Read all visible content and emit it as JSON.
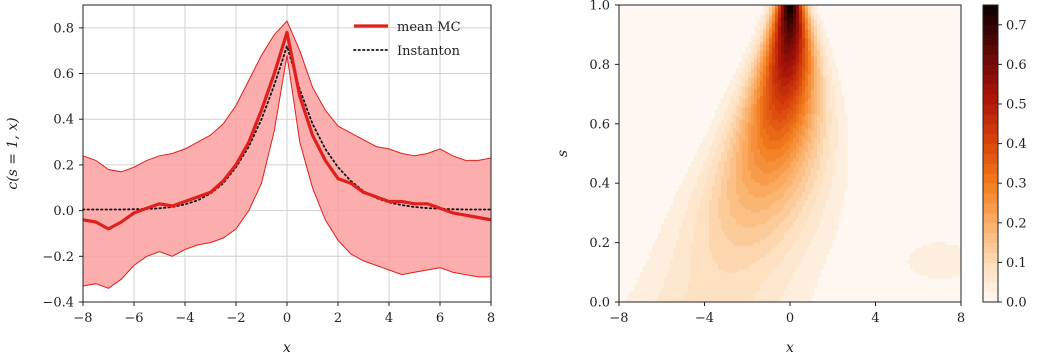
{
  "chart_data": [
    {
      "type": "line",
      "xlabel": "x",
      "ylabel": "c(s = 1, x)",
      "xlim": [
        -8,
        8
      ],
      "ylim": [
        -0.4,
        0.9
      ],
      "xticks": [
        "−8",
        "−6",
        "−4",
        "−2",
        "0",
        "2",
        "4",
        "6",
        "8"
      ],
      "yticks": [
        "−0.4",
        "−0.2",
        "0.0",
        "0.2",
        "0.4",
        "0.6",
        "0.8"
      ],
      "grid": true,
      "legend_position": "top-right",
      "x": [
        -8,
        -7.5,
        -7,
        -6.5,
        -6,
        -5.5,
        -5,
        -4.5,
        -4,
        -3.5,
        -3,
        -2.5,
        -2,
        -1.5,
        -1,
        -0.5,
        0,
        0.5,
        1,
        1.5,
        2,
        2.5,
        3,
        3.5,
        4,
        4.5,
        5,
        5.5,
        6,
        6.5,
        7,
        7.5,
        8
      ],
      "series": [
        {
          "name": "mean MC",
          "color": "#e0201c",
          "values": [
            -0.04,
            -0.05,
            -0.08,
            -0.05,
            -0.01,
            0.01,
            0.03,
            0.02,
            0.04,
            0.06,
            0.08,
            0.13,
            0.2,
            0.3,
            0.44,
            0.6,
            0.78,
            0.5,
            0.33,
            0.22,
            0.14,
            0.12,
            0.08,
            0.06,
            0.04,
            0.04,
            0.03,
            0.03,
            0.01,
            -0.01,
            -0.02,
            -0.03,
            -0.04
          ]
        },
        {
          "name": "Instanton",
          "color": "#111111",
          "style": "dotted",
          "values": [
            0.005,
            0.005,
            0.005,
            0.005,
            0.006,
            0.007,
            0.01,
            0.016,
            0.027,
            0.045,
            0.075,
            0.12,
            0.19,
            0.28,
            0.4,
            0.55,
            0.72,
            0.53,
            0.38,
            0.27,
            0.19,
            0.13,
            0.085,
            0.055,
            0.036,
            0.024,
            0.016,
            0.011,
            0.008,
            0.006,
            0.005,
            0.005,
            0.005
          ]
        }
      ],
      "band": {
        "color": "#fca0a0",
        "edge_color": "#e0201c",
        "upper": [
          0.24,
          0.22,
          0.18,
          0.17,
          0.19,
          0.22,
          0.24,
          0.25,
          0.27,
          0.3,
          0.33,
          0.38,
          0.46,
          0.57,
          0.68,
          0.77,
          0.83,
          0.7,
          0.54,
          0.44,
          0.37,
          0.34,
          0.31,
          0.28,
          0.27,
          0.25,
          0.24,
          0.25,
          0.27,
          0.24,
          0.22,
          0.22,
          0.23
        ],
        "lower": [
          -0.33,
          -0.32,
          -0.34,
          -0.3,
          -0.24,
          -0.2,
          -0.18,
          -0.2,
          -0.17,
          -0.15,
          -0.14,
          -0.12,
          -0.08,
          0.0,
          0.12,
          0.35,
          0.68,
          0.3,
          0.1,
          -0.04,
          -0.13,
          -0.19,
          -0.22,
          -0.24,
          -0.26,
          -0.28,
          -0.27,
          -0.26,
          -0.25,
          -0.27,
          -0.28,
          -0.29,
          -0.29
        ]
      }
    },
    {
      "type": "heatmap",
      "style": "filled-contour",
      "xlabel": "x",
      "ylabel": "s",
      "xlim": [
        -8,
        8
      ],
      "ylim": [
        0,
        1
      ],
      "xticks": [
        "−8",
        "−4",
        "0",
        "4",
        "8"
      ],
      "yticks": [
        "0.0",
        "0.2",
        "0.4",
        "0.6",
        "0.8",
        "1.0"
      ],
      "colorbar": {
        "range": [
          0,
          0.75
        ],
        "ticks": [
          "0.0",
          "0.1",
          "0.2",
          "0.3",
          "0.4",
          "0.5",
          "0.6",
          "0.7"
        ],
        "colormap": "gist_heat_r",
        "levels": 30
      },
      "features": [
        {
          "description": "narrow peak",
          "x": 0,
          "s": 1.0,
          "value": 0.75
        },
        {
          "description": "ridge tilting left as s decreases",
          "x_at_s0_2": -6,
          "value": 0.1
        },
        {
          "description": "weak lobe",
          "x": 7,
          "s": 0.14,
          "value": 0.05
        }
      ]
    }
  ]
}
